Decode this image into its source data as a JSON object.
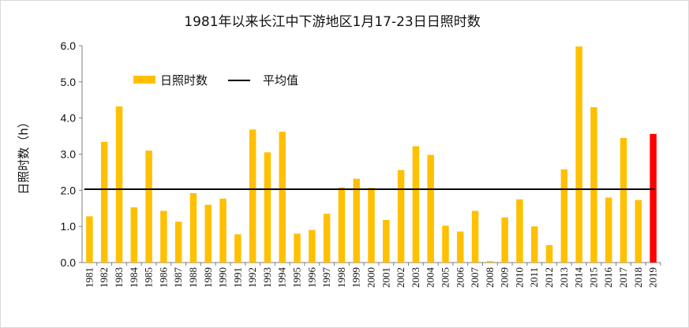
{
  "chart_data": {
    "type": "bar",
    "title": "1981年以来长江中下游地区1月17-23日日照时数",
    "xlabel": "",
    "ylabel": "日照时数（h）",
    "ylim": [
      0,
      6.0
    ],
    "yticks": [
      "0.0",
      "1.0",
      "2.0",
      "3.0",
      "4.0",
      "5.0",
      "6.0"
    ],
    "categories": [
      "1981",
      "1982",
      "1983",
      "1984",
      "1985",
      "1986",
      "1987",
      "1988",
      "1989",
      "1990",
      "1991",
      "1992",
      "1993",
      "1994",
      "1995",
      "1996",
      "1997",
      "1998",
      "1999",
      "2000",
      "2001",
      "2002",
      "2003",
      "2004",
      "2005",
      "2006",
      "2007",
      "2008",
      "2009",
      "2010",
      "2011",
      "2012",
      "2013",
      "2014",
      "2015",
      "2016",
      "2017",
      "2018",
      "2019"
    ],
    "series": [
      {
        "name": "日照时数",
        "color": "#FFC000",
        "values": [
          1.28,
          3.34,
          4.32,
          1.53,
          3.1,
          1.43,
          1.13,
          1.92,
          1.6,
          1.77,
          0.78,
          3.68,
          3.05,
          3.62,
          0.8,
          0.9,
          1.35,
          2.08,
          2.32,
          2.07,
          1.18,
          2.56,
          3.22,
          2.98,
          1.02,
          0.86,
          1.43,
          0.04,
          1.25,
          1.75,
          1.0,
          0.48,
          2.58,
          5.98,
          4.3,
          1.8,
          3.45,
          1.73,
          3.56
        ]
      }
    ],
    "highlight": {
      "category": "2019",
      "color": "#FF0000"
    },
    "reference_line": {
      "name": "平均值",
      "value": 2.03,
      "color": "#000000"
    },
    "legend": {
      "placement": "top-left",
      "items": [
        "日照时数",
        "平均值"
      ]
    },
    "grid": false
  }
}
